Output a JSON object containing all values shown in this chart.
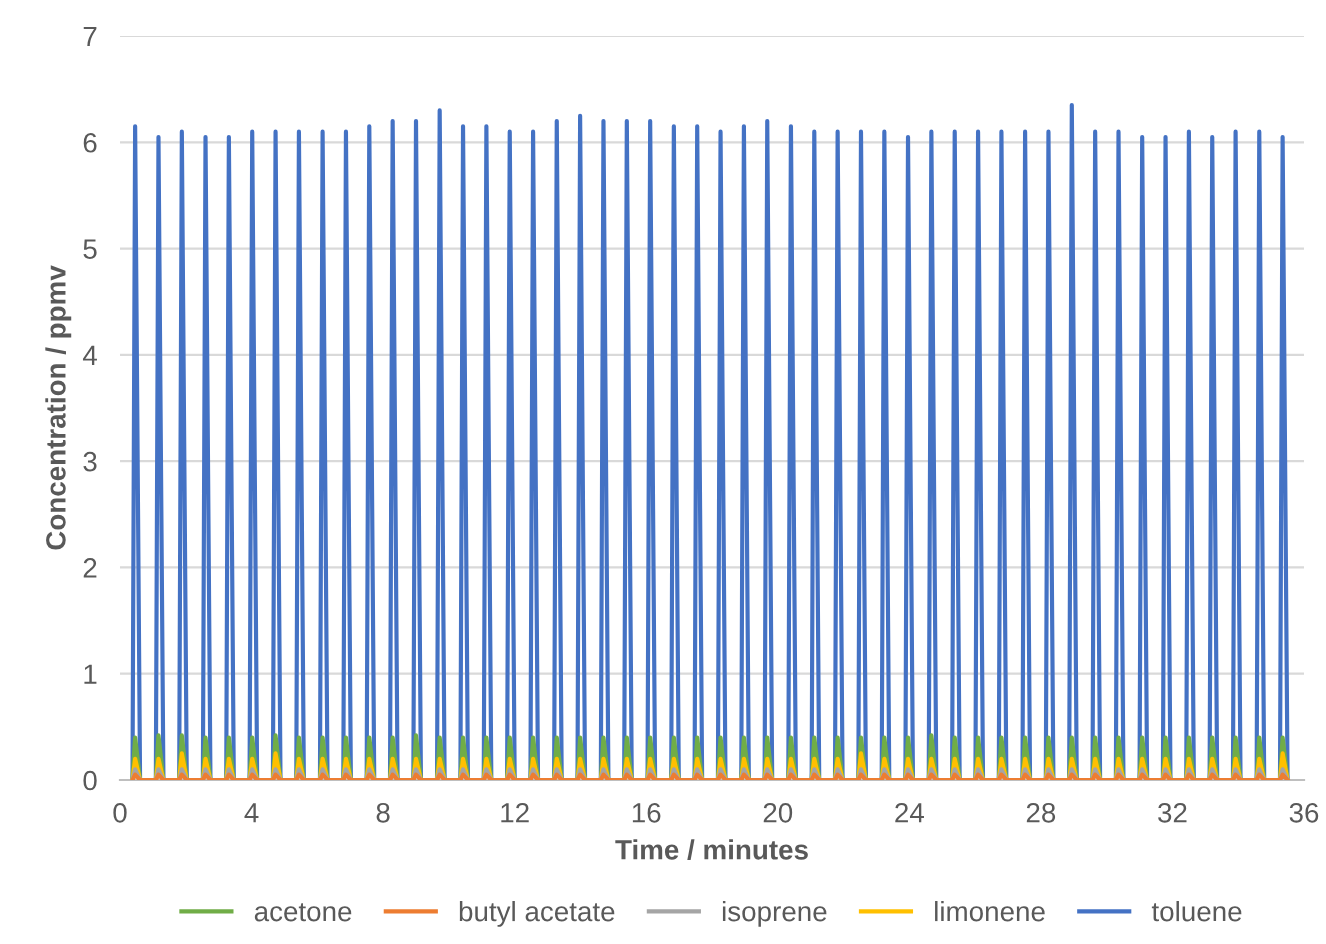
{
  "chart_data": {
    "type": "line",
    "xlabel": "Time / minutes",
    "ylabel": "Concentration / ppmv",
    "x": [
      0.38,
      0.46,
      0.61,
      1.09,
      1.17,
      1.32,
      1.8,
      1.88,
      2.03,
      2.52,
      2.6,
      2.75,
      3.23,
      3.31,
      3.46,
      3.94,
      4.02,
      4.17,
      4.65,
      4.73,
      4.88,
      5.36,
      5.44,
      5.59,
      6.08,
      6.16,
      6.31,
      6.79,
      6.87,
      7.02,
      7.5,
      7.58,
      7.73,
      8.21,
      8.29,
      8.44,
      8.92,
      9.0,
      9.15,
      9.64,
      9.72,
      9.87,
      10.35,
      10.43,
      10.58,
      11.06,
      11.14,
      11.29,
      11.77,
      11.85,
      12.0,
      12.48,
      12.56,
      12.71,
      13.2,
      13.28,
      13.43,
      13.91,
      13.99,
      14.14,
      14.62,
      14.7,
      14.85,
      15.33,
      15.41,
      15.56,
      16.04,
      16.12,
      16.27,
      16.76,
      16.84,
      16.99,
      17.47,
      17.55,
      17.7,
      18.18,
      18.26,
      18.41,
      18.89,
      18.97,
      19.12,
      19.6,
      19.68,
      19.83,
      20.32,
      20.4,
      20.55,
      21.03,
      21.11,
      21.26,
      21.74,
      21.82,
      21.97,
      22.45,
      22.53,
      22.68,
      23.16,
      23.24,
      23.39,
      23.88,
      23.96,
      24.11,
      24.59,
      24.67,
      24.82,
      25.3,
      25.38,
      25.53,
      26.01,
      26.09,
      26.24,
      26.72,
      26.8,
      26.95,
      27.44,
      27.52,
      27.67,
      28.15,
      28.23,
      28.38,
      28.86,
      28.94,
      29.09,
      29.57,
      29.65,
      29.8,
      30.28,
      30.36,
      30.51,
      31.0,
      31.08,
      31.23,
      31.71,
      31.79,
      31.94,
      32.42,
      32.5,
      32.65,
      33.13,
      33.21,
      33.36,
      33.84,
      33.92,
      34.07,
      34.56,
      34.64,
      34.79,
      35.27,
      35.35,
      35.5
    ],
    "series": [
      {
        "name": "acetone",
        "color": "#70ad47",
        "values": [
          0,
          0.4,
          0,
          0,
          0.42,
          0,
          0,
          0.42,
          0,
          0,
          0.4,
          0,
          0,
          0.4,
          0,
          0,
          0.4,
          0,
          0,
          0.42,
          0,
          0,
          0.4,
          0,
          0,
          0.4,
          0,
          0,
          0.4,
          0,
          0,
          0.4,
          0,
          0,
          0.4,
          0,
          0,
          0.42,
          0,
          0,
          0.4,
          0,
          0,
          0.4,
          0,
          0,
          0.4,
          0,
          0,
          0.4,
          0,
          0,
          0.4,
          0,
          0,
          0.4,
          0,
          0,
          0.4,
          0,
          0,
          0.4,
          0,
          0,
          0.4,
          0,
          0,
          0.4,
          0,
          0,
          0.4,
          0,
          0,
          0.4,
          0,
          0,
          0.4,
          0,
          0,
          0.4,
          0,
          0,
          0.4,
          0,
          0,
          0.4,
          0,
          0,
          0.4,
          0,
          0,
          0.4,
          0,
          0,
          0.4,
          0,
          0,
          0.4,
          0,
          0,
          0.4,
          0,
          0,
          0.42,
          0,
          0,
          0.4,
          0,
          0,
          0.4,
          0,
          0,
          0.4,
          0,
          0,
          0.4,
          0,
          0,
          0.4,
          0,
          0,
          0.4,
          0,
          0,
          0.4,
          0,
          0,
          0.4,
          0,
          0,
          0.4,
          0,
          0,
          0.4,
          0,
          0,
          0.4,
          0,
          0,
          0.4,
          0,
          0,
          0.4,
          0,
          0,
          0.4,
          0,
          0,
          0.4,
          0
        ]
      },
      {
        "name": "butyl acetate",
        "color": "#ed7d31",
        "values": [
          0,
          0.05,
          0,
          0,
          0.05,
          0,
          0,
          0.05,
          0,
          0,
          0.05,
          0,
          0,
          0.05,
          0,
          0,
          0.05,
          0,
          0,
          0.05,
          0,
          0,
          0.05,
          0,
          0,
          0.05,
          0,
          0,
          0.05,
          0,
          0,
          0.05,
          0,
          0,
          0.05,
          0,
          0,
          0.05,
          0,
          0,
          0.05,
          0,
          0,
          0.05,
          0,
          0,
          0.05,
          0,
          0,
          0.05,
          0,
          0,
          0.05,
          0,
          0,
          0.05,
          0,
          0,
          0.05,
          0,
          0,
          0.05,
          0,
          0,
          0.05,
          0,
          0,
          0.05,
          0,
          0,
          0.05,
          0,
          0,
          0.05,
          0,
          0,
          0.05,
          0,
          0,
          0.05,
          0,
          0,
          0.05,
          0,
          0,
          0.05,
          0,
          0,
          0.05,
          0,
          0,
          0.05,
          0,
          0,
          0.05,
          0,
          0,
          0.05,
          0,
          0,
          0.05,
          0,
          0,
          0.05,
          0,
          0,
          0.05,
          0,
          0,
          0.05,
          0,
          0,
          0.05,
          0,
          0,
          0.05,
          0,
          0,
          0.05,
          0,
          0,
          0.05,
          0,
          0,
          0.05,
          0,
          0,
          0.05,
          0,
          0,
          0.05,
          0,
          0,
          0.05,
          0,
          0,
          0.05,
          0,
          0,
          0.05,
          0,
          0,
          0.05,
          0,
          0,
          0.05,
          0,
          0,
          0.05,
          0
        ]
      },
      {
        "name": "isoprene",
        "color": "#a5a5a5",
        "values": [
          0,
          0.1,
          0,
          0,
          0.1,
          0,
          0,
          0.1,
          0,
          0,
          0.1,
          0,
          0,
          0.1,
          0,
          0,
          0.1,
          0,
          0,
          0.1,
          0,
          0,
          0.1,
          0,
          0,
          0.1,
          0,
          0,
          0.1,
          0,
          0,
          0.1,
          0,
          0,
          0.1,
          0,
          0,
          0.1,
          0,
          0,
          0.1,
          0,
          0,
          0.1,
          0,
          0,
          0.1,
          0,
          0,
          0.1,
          0,
          0,
          0.1,
          0,
          0,
          0.1,
          0,
          0,
          0.1,
          0,
          0,
          0.1,
          0,
          0,
          0.1,
          0,
          0,
          0.1,
          0,
          0,
          0.1,
          0,
          0,
          0.1,
          0,
          0,
          0.1,
          0,
          0,
          0.1,
          0,
          0,
          0.1,
          0,
          0,
          0.1,
          0,
          0,
          0.1,
          0,
          0,
          0.1,
          0,
          0,
          0.1,
          0,
          0,
          0.1,
          0,
          0,
          0.1,
          0,
          0,
          0.1,
          0,
          0,
          0.1,
          0,
          0,
          0.1,
          0,
          0,
          0.1,
          0,
          0,
          0.1,
          0,
          0,
          0.1,
          0,
          0,
          0.1,
          0,
          0,
          0.1,
          0,
          0,
          0.1,
          0,
          0,
          0.1,
          0,
          0,
          0.1,
          0,
          0,
          0.1,
          0,
          0,
          0.1,
          0,
          0,
          0.1,
          0,
          0,
          0.1,
          0,
          0,
          0.1,
          0
        ]
      },
      {
        "name": "limonene",
        "color": "#ffc000",
        "values": [
          0,
          0.2,
          0,
          0,
          0.2,
          0,
          0,
          0.25,
          0,
          0,
          0.2,
          0,
          0,
          0.2,
          0,
          0,
          0.2,
          0,
          0,
          0.25,
          0,
          0,
          0.2,
          0,
          0,
          0.2,
          0,
          0,
          0.2,
          0,
          0,
          0.2,
          0,
          0,
          0.2,
          0,
          0,
          0.2,
          0,
          0,
          0.2,
          0,
          0,
          0.2,
          0,
          0,
          0.2,
          0,
          0,
          0.2,
          0,
          0,
          0.2,
          0,
          0,
          0.2,
          0,
          0,
          0.2,
          0,
          0,
          0.2,
          0,
          0,
          0.2,
          0,
          0,
          0.2,
          0,
          0,
          0.2,
          0,
          0,
          0.2,
          0,
          0,
          0.2,
          0,
          0,
          0.2,
          0,
          0,
          0.2,
          0,
          0,
          0.2,
          0,
          0,
          0.2,
          0,
          0,
          0.2,
          0,
          0,
          0.25,
          0,
          0,
          0.2,
          0,
          0,
          0.2,
          0,
          0,
          0.2,
          0,
          0,
          0.2,
          0,
          0,
          0.2,
          0,
          0,
          0.2,
          0,
          0,
          0.2,
          0,
          0,
          0.2,
          0,
          0,
          0.2,
          0,
          0,
          0.2,
          0,
          0,
          0.2,
          0,
          0,
          0.2,
          0,
          0,
          0.2,
          0,
          0,
          0.2,
          0,
          0,
          0.2,
          0,
          0,
          0.2,
          0,
          0,
          0.2,
          0,
          0,
          0.25,
          0
        ]
      },
      {
        "name": "toluene",
        "color": "#4472c4",
        "values": [
          0,
          6.15,
          0,
          0,
          6.05,
          0,
          0,
          6.1,
          0,
          0,
          6.05,
          0,
          0,
          6.05,
          0,
          0,
          6.1,
          0,
          0,
          6.1,
          0,
          0,
          6.1,
          0,
          0,
          6.1,
          0,
          0,
          6.1,
          0,
          0,
          6.15,
          0,
          0,
          6.2,
          0,
          0,
          6.2,
          0,
          0,
          6.3,
          0,
          0,
          6.15,
          0,
          0,
          6.15,
          0,
          0,
          6.1,
          0,
          0,
          6.1,
          0,
          0,
          6.2,
          0,
          0,
          6.25,
          0,
          0,
          6.2,
          0,
          0,
          6.2,
          0,
          0,
          6.2,
          0,
          0,
          6.15,
          0,
          0,
          6.15,
          0,
          0,
          6.1,
          0,
          0,
          6.15,
          0,
          0,
          6.2,
          0,
          0,
          6.15,
          0,
          0,
          6.1,
          0,
          0,
          6.1,
          0,
          0,
          6.1,
          0,
          0,
          6.1,
          0,
          0,
          6.05,
          0,
          0,
          6.1,
          0,
          0,
          6.1,
          0,
          0,
          6.1,
          0,
          0,
          6.1,
          0,
          0,
          6.1,
          0,
          0,
          6.1,
          0,
          0,
          6.35,
          0,
          0,
          6.1,
          0,
          0,
          6.1,
          0,
          0,
          6.05,
          0,
          0,
          6.05,
          0,
          0,
          6.1,
          0,
          0,
          6.05,
          0,
          0,
          6.1,
          0,
          0,
          6.1,
          0,
          0,
          6.05,
          0
        ]
      }
    ],
    "xlim": [
      0,
      36
    ],
    "xticks": [
      0,
      4,
      8,
      12,
      16,
      20,
      24,
      28,
      32,
      36
    ],
    "ylim": [
      0,
      7
    ],
    "yticks": [
      0,
      1,
      2,
      3,
      4,
      5,
      6,
      7
    ],
    "grid": "y",
    "legend": "bottom",
    "marker": "none",
    "line_style": "solid"
  }
}
